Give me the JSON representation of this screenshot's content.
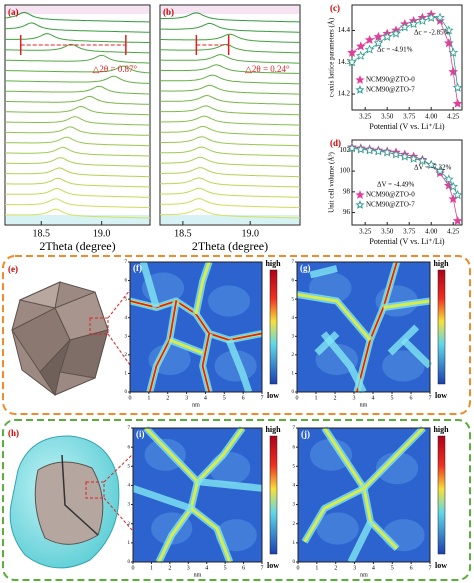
{
  "chart_data": [
    {
      "type": "waterfall",
      "panel_label": "(a)",
      "xlabel": "2Theta (degree)",
      "xlim": [
        18.2,
        19.4
      ],
      "xticks": [
        18.5,
        {
          "value": 19,
          "label": "19.0"
        }
      ],
      "peaks": [
        18.36,
        18.42,
        18.55,
        18.75,
        19.0,
        19.18,
        19.1,
        18.98,
        18.9,
        18.83,
        18.78,
        18.74,
        18.71,
        18.68,
        18.66,
        18.65,
        18.64,
        18.63,
        18.62,
        18.62
      ],
      "shift": [
        18.33,
        19.2
      ],
      "annotation": "△2θ = 0.87°",
      "colors": [
        "#2f9a3a",
        "#d6e05a"
      ]
    },
    {
      "type": "waterfall",
      "panel_label": "(b)",
      "xlabel": "2Theta (degree)",
      "xlim": [
        18.33,
        19.37
      ],
      "xticks": [
        18.5,
        {
          "value": 19,
          "label": "19.0"
        }
      ],
      "peaks": [
        18.6,
        18.7,
        18.85,
        18.82,
        18.78,
        18.75,
        18.72,
        18.7,
        18.68,
        18.67,
        18.66,
        18.65,
        18.64,
        18.64,
        18.63,
        18.63,
        18.62,
        18.62,
        18.62,
        18.62
      ],
      "shift": [
        18.6,
        18.84
      ],
      "annotation": "△2θ = 0.24°",
      "colors": [
        "#2f9a3a",
        "#d6e05a"
      ]
    },
    {
      "type": "line",
      "panel_label": "(c)",
      "xlabel": "Potential (V vs. Li⁺/Li)",
      "ylabel": "c-axis lattice parameters (Å)",
      "xlim": [
        3.1,
        4.35
      ],
      "xticks": [
        3.25,
        {
          "value": 3.5,
          "label": "3.50"
        },
        3.75,
        {
          "value": 4,
          "label": "4.00"
        },
        4.25
      ],
      "ylim": [
        14.15,
        14.48
      ],
      "yticks": [
        14.2,
        14.3,
        14.4
      ],
      "x": [
        3.1,
        3.2,
        3.3,
        3.4,
        3.5,
        3.6,
        3.7,
        3.8,
        3.9,
        4.0,
        4.1,
        4.2,
        4.25,
        4.3
      ],
      "series": [
        {
          "name": "NCM90@ZTO-0",
          "color": "#e0409a",
          "values": [
            14.33,
            14.35,
            14.37,
            14.38,
            14.39,
            14.4,
            14.42,
            14.43,
            14.44,
            14.45,
            14.43,
            14.36,
            14.27,
            14.17
          ]
        },
        {
          "name": "NCM90@ZTO-7",
          "color": "#2a9d8f",
          "values": [
            14.3,
            14.32,
            14.34,
            14.36,
            14.38,
            14.39,
            14.41,
            14.42,
            14.43,
            14.44,
            14.44,
            14.4,
            14.33,
            14.22
          ]
        }
      ],
      "annotations": [
        "Δc = -4.91%",
        "Δc = -2.85%"
      ]
    },
    {
      "type": "line",
      "panel_label": "(d)",
      "xlabel": "Potential (V vs. Li⁺/Li)",
      "ylabel": "Unit cell volume (Å³)",
      "xlim": [
        3.1,
        4.35
      ],
      "xticks": [
        3.25,
        {
          "value": 3.5,
          "label": "3.50"
        },
        3.75,
        {
          "value": 4,
          "label": "4.00"
        },
        4.25
      ],
      "ylim": [
        94.8,
        103
      ],
      "yticks": [
        96,
        98,
        100,
        102
      ],
      "x": [
        3.1,
        3.2,
        3.3,
        3.4,
        3.5,
        3.6,
        3.7,
        3.8,
        3.9,
        4.0,
        4.1,
        4.2,
        4.25,
        4.3
      ],
      "series": [
        {
          "name": "NCM90@ZTO-0",
          "color": "#e0409a",
          "values": [
            102.3,
            102.2,
            102.1,
            102.0,
            101.9,
            101.8,
            101.6,
            101.4,
            101.1,
            100.6,
            99.8,
            98.6,
            97.3,
            95.2
          ]
        },
        {
          "name": "NCM90@ZTO-7",
          "color": "#2a9d8f",
          "values": [
            102.2,
            102.1,
            102.0,
            101.9,
            101.8,
            101.6,
            101.4,
            101.2,
            101.0,
            100.6,
            100.0,
            99.2,
            98.5,
            97.7
          ]
        }
      ],
      "annotations": [
        "ΔV = -4.49%",
        "ΔV = -7.32%"
      ]
    },
    {
      "type": "heatmap",
      "panel_label": "(f)",
      "xlabel": "nm",
      "xlim": [
        0,
        7
      ],
      "xticks": [
        0,
        1,
        2,
        3,
        4,
        5,
        6,
        7
      ],
      "ylim": [
        0,
        7
      ],
      "yticks": [
        0,
        1,
        2,
        3,
        4,
        5,
        6,
        7
      ],
      "colorbar_labels": [
        "high",
        "low"
      ]
    },
    {
      "type": "heatmap",
      "panel_label": "(g)",
      "xlabel": "nm",
      "xlim": [
        0,
        7
      ],
      "xticks": [
        0,
        1,
        2,
        3,
        4,
        5,
        6,
        7
      ],
      "ylim": [
        0,
        7
      ],
      "yticks": [
        0,
        1,
        2,
        3,
        4,
        5,
        6,
        7
      ],
      "colorbar_labels": [
        "high",
        "low"
      ]
    },
    {
      "type": "heatmap",
      "panel_label": "(i)",
      "xlabel": "nm",
      "xlim": [
        0,
        7
      ],
      "xticks": [
        0,
        1,
        2,
        3,
        4,
        5,
        6,
        7
      ],
      "ylim": [
        0,
        7
      ],
      "yticks": [
        0,
        1,
        2,
        3,
        4,
        5,
        6,
        7
      ],
      "colorbar_labels": [
        "high",
        "low"
      ]
    },
    {
      "type": "heatmap",
      "panel_label": "(j)",
      "xlabel": "nm",
      "xlim": [
        0,
        7
      ],
      "xticks": [
        0,
        1,
        2,
        3,
        4,
        5,
        6,
        7
      ],
      "ylim": [
        0,
        7
      ],
      "yticks": [
        0,
        1,
        2,
        3,
        4,
        5,
        6,
        7
      ],
      "colorbar_labels": [
        "high",
        "low"
      ]
    }
  ],
  "images": [
    {
      "panel_label": "(e)"
    },
    {
      "panel_label": "(h)"
    }
  ]
}
